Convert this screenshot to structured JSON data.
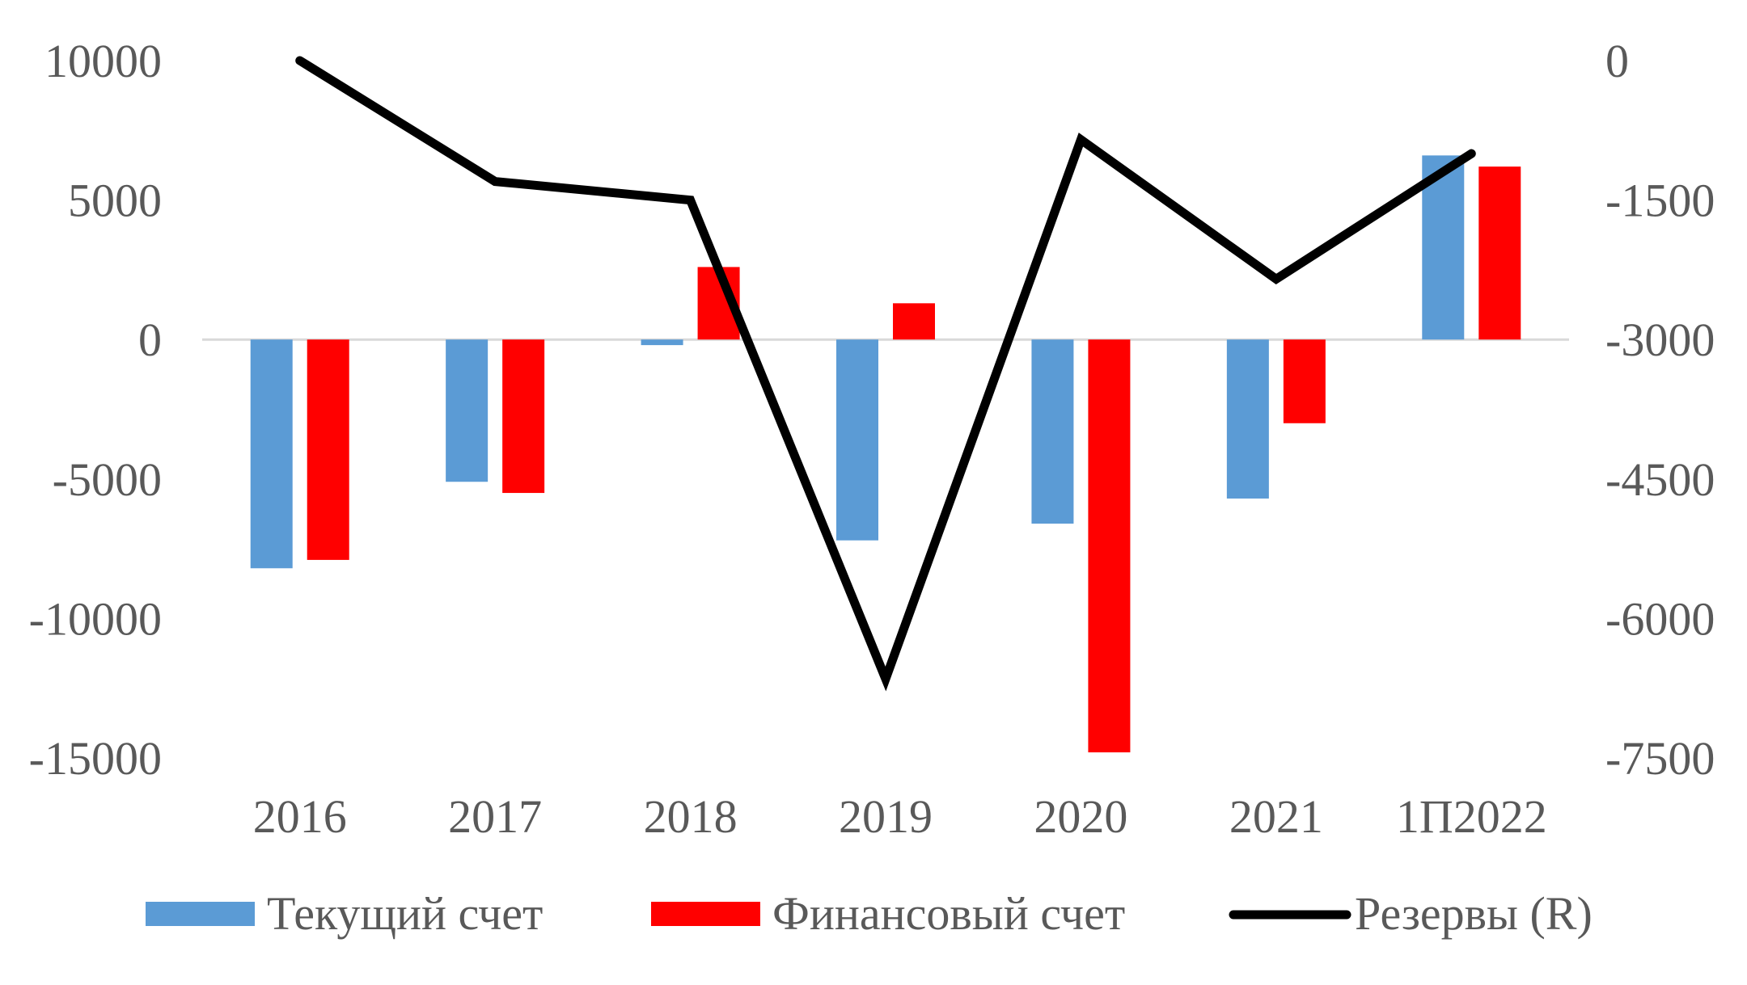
{
  "chart_data": {
    "type": "bar",
    "categories": [
      "2016",
      "2017",
      "2018",
      "2019",
      "2020",
      "2021",
      "1П2022"
    ],
    "series": [
      {
        "name": "Текущий счет",
        "type": "bar",
        "axis": "left",
        "color": "#5B9BD5",
        "values": [
          -8200,
          -5100,
          -200,
          -7200,
          -6600,
          -5700,
          6600
        ]
      },
      {
        "name": "Финансовый счет",
        "type": "bar",
        "axis": "left",
        "color": "#FF0000",
        "values": [
          -7900,
          -5500,
          2600,
          1300,
          -14800,
          -3000,
          6200
        ]
      },
      {
        "name": "Резервы (R)",
        "type": "line",
        "axis": "right",
        "color": "#000000",
        "values": [
          0,
          -1300,
          -1500,
          -6650,
          -850,
          -2350,
          -1000
        ]
      }
    ],
    "y_left": {
      "ylim": [
        -15000,
        10000
      ],
      "ticks": [
        10000,
        5000,
        0,
        -5000,
        -10000,
        -15000
      ]
    },
    "y_right": {
      "ylim": [
        -7500,
        0
      ],
      "ticks": [
        0,
        -1500,
        -3000,
        -4500,
        -6000,
        -7500
      ]
    },
    "grid": false,
    "legend_position": "bottom"
  }
}
